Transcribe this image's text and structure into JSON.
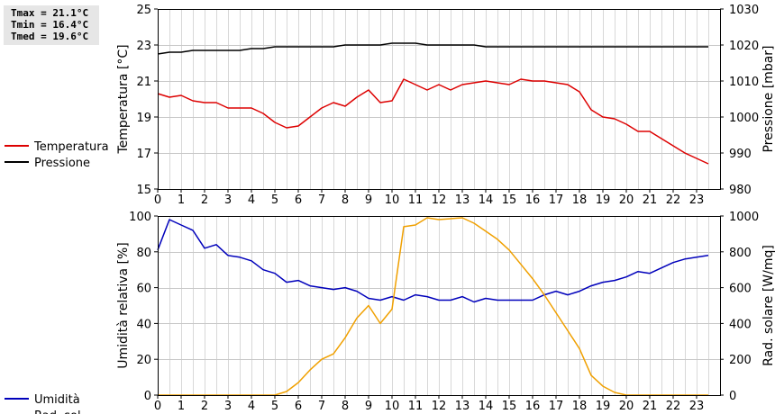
{
  "stats": {
    "tmax": "Tmax = 21.1°C",
    "tmin": "Tmin = 16.4°C",
    "tmed": "Tmed = 19.6°C"
  },
  "chart_data": [
    {
      "type": "line",
      "xlim": [
        0,
        24
      ],
      "x_ticks": [
        "0",
        "1",
        "2",
        "3",
        "4",
        "5",
        "6",
        "7",
        "8",
        "9",
        "10",
        "11",
        "12",
        "13",
        "14",
        "15",
        "16",
        "17",
        "18",
        "19",
        "20",
        "21",
        "22",
        "23"
      ],
      "grid": true,
      "legend_placement": "left",
      "left_axis": {
        "label": "Temperatura [°C]",
        "ylim": [
          15,
          25
        ],
        "ticks": [
          "15",
          "17",
          "19",
          "21",
          "23",
          "25"
        ]
      },
      "right_axis": {
        "label": "Pressione [mbar]",
        "ylim": [
          980,
          1030
        ],
        "ticks": [
          "980",
          "990",
          "1000",
          "1010",
          "1020",
          "1030"
        ]
      },
      "series": [
        {
          "name": "Temperatura",
          "axis": "left",
          "color": "#dd0000",
          "x": [
            0,
            0.5,
            1,
            1.5,
            2,
            2.5,
            3,
            3.5,
            4,
            4.5,
            5,
            5.5,
            6,
            6.5,
            7,
            7.5,
            8,
            8.5,
            9,
            9.5,
            10,
            10.5,
            11,
            11.5,
            12,
            12.5,
            13,
            13.5,
            14,
            14.5,
            15,
            15.5,
            16,
            16.5,
            17,
            17.5,
            18,
            18.5,
            19,
            19.5,
            20,
            20.5,
            21,
            21.5,
            22,
            22.5,
            23,
            23.5
          ],
          "y": [
            20.3,
            20.1,
            20.2,
            19.9,
            19.8,
            19.8,
            19.5,
            19.5,
            19.5,
            19.2,
            18.7,
            18.4,
            18.5,
            19.0,
            19.5,
            19.8,
            19.6,
            20.1,
            20.5,
            19.8,
            19.9,
            21.1,
            20.8,
            20.5,
            20.8,
            20.5,
            20.8,
            20.9,
            21.0,
            20.9,
            20.8,
            21.1,
            21.0,
            21.0,
            20.9,
            20.8,
            20.4,
            19.4,
            19.0,
            18.9,
            18.6,
            18.2,
            18.2,
            17.8,
            17.4,
            17.0,
            16.7,
            16.4
          ]
        },
        {
          "name": "Pressione",
          "axis": "right",
          "color": "#000000",
          "x": [
            0,
            0.5,
            1,
            1.5,
            2,
            2.5,
            3,
            3.5,
            4,
            4.5,
            5,
            5.5,
            6,
            6.5,
            7,
            7.5,
            8,
            8.5,
            9,
            9.5,
            10,
            10.5,
            11,
            11.5,
            12,
            12.5,
            13,
            13.5,
            14,
            14.5,
            15,
            15.5,
            16,
            16.5,
            17,
            17.5,
            18,
            18.5,
            19,
            19.5,
            20,
            20.5,
            21,
            21.5,
            22,
            22.5,
            23,
            23.5
          ],
          "y": [
            1017.5,
            1018,
            1018,
            1018.5,
            1018.5,
            1018.5,
            1018.5,
            1018.5,
            1019,
            1019,
            1019.5,
            1019.5,
            1019.5,
            1019.5,
            1019.5,
            1019.5,
            1020,
            1020,
            1020,
            1020,
            1020.5,
            1020.5,
            1020.5,
            1020,
            1020,
            1020,
            1020,
            1020,
            1019.5,
            1019.5,
            1019.5,
            1019.5,
            1019.5,
            1019.5,
            1019.5,
            1019.5,
            1019.5,
            1019.5,
            1019.5,
            1019.5,
            1019.5,
            1019.5,
            1019.5,
            1019.5,
            1019.5,
            1019.5,
            1019.5,
            1019.5
          ]
        }
      ]
    },
    {
      "type": "line",
      "xlim": [
        0,
        24
      ],
      "x_ticks": [
        "0",
        "1",
        "2",
        "3",
        "4",
        "5",
        "6",
        "7",
        "8",
        "9",
        "10",
        "11",
        "12",
        "13",
        "14",
        "15",
        "16",
        "17",
        "18",
        "19",
        "20",
        "21",
        "22",
        "23"
      ],
      "grid": true,
      "legend_placement": "left",
      "left_axis": {
        "label": "Umidità relativa [%]",
        "ylim": [
          0,
          100
        ],
        "ticks": [
          "0",
          "20",
          "40",
          "60",
          "80",
          "100"
        ]
      },
      "right_axis": {
        "label": "Rad. solare [W/mq]",
        "ylim": [
          0,
          1000
        ],
        "ticks": [
          "0",
          "200",
          "400",
          "600",
          "800",
          "1000"
        ]
      },
      "series": [
        {
          "name": "Umidità",
          "axis": "left",
          "color": "#0000bb",
          "x": [
            0,
            0.5,
            1,
            1.5,
            2,
            2.5,
            3,
            3.5,
            4,
            4.5,
            5,
            5.5,
            6,
            6.5,
            7,
            7.5,
            8,
            8.5,
            9,
            9.5,
            10,
            10.5,
            11,
            11.5,
            12,
            12.5,
            13,
            13.5,
            14,
            14.5,
            15,
            15.5,
            16,
            16.5,
            17,
            17.5,
            18,
            18.5,
            19,
            19.5,
            20,
            20.5,
            21,
            21.5,
            22,
            22.5,
            23,
            23.5
          ],
          "y": [
            81,
            98,
            95,
            92,
            82,
            84,
            78,
            77,
            75,
            70,
            68,
            63,
            64,
            61,
            60,
            59,
            60,
            58,
            54,
            53,
            55,
            53,
            56,
            55,
            53,
            53,
            55,
            52,
            54,
            53,
            53,
            53,
            53,
            56,
            58,
            56,
            58,
            61,
            63,
            64,
            66,
            69,
            68,
            71,
            74,
            76,
            77,
            78
          ]
        },
        {
          "name": "Rad. sol.",
          "axis": "right",
          "color": "#f0a000",
          "x": [
            0,
            1,
            2,
            3,
            4,
            5,
            5.5,
            6,
            6.5,
            7,
            7.5,
            8,
            8.5,
            9,
            9.5,
            10,
            10.5,
            11,
            11.5,
            12,
            12.5,
            13,
            13.5,
            14,
            14.5,
            15,
            15.5,
            16,
            16.5,
            17,
            17.5,
            18,
            18.5,
            19,
            19.5,
            20,
            21,
            22,
            23,
            23.5
          ],
          "y": [
            0,
            0,
            0,
            0,
            0,
            0,
            20,
            70,
            140,
            200,
            230,
            320,
            430,
            500,
            400,
            480,
            940,
            950,
            990,
            980,
            985,
            990,
            960,
            915,
            870,
            810,
            730,
            650,
            560,
            460,
            360,
            260,
            110,
            50,
            15,
            0,
            0,
            0,
            0,
            0
          ]
        }
      ]
    }
  ]
}
